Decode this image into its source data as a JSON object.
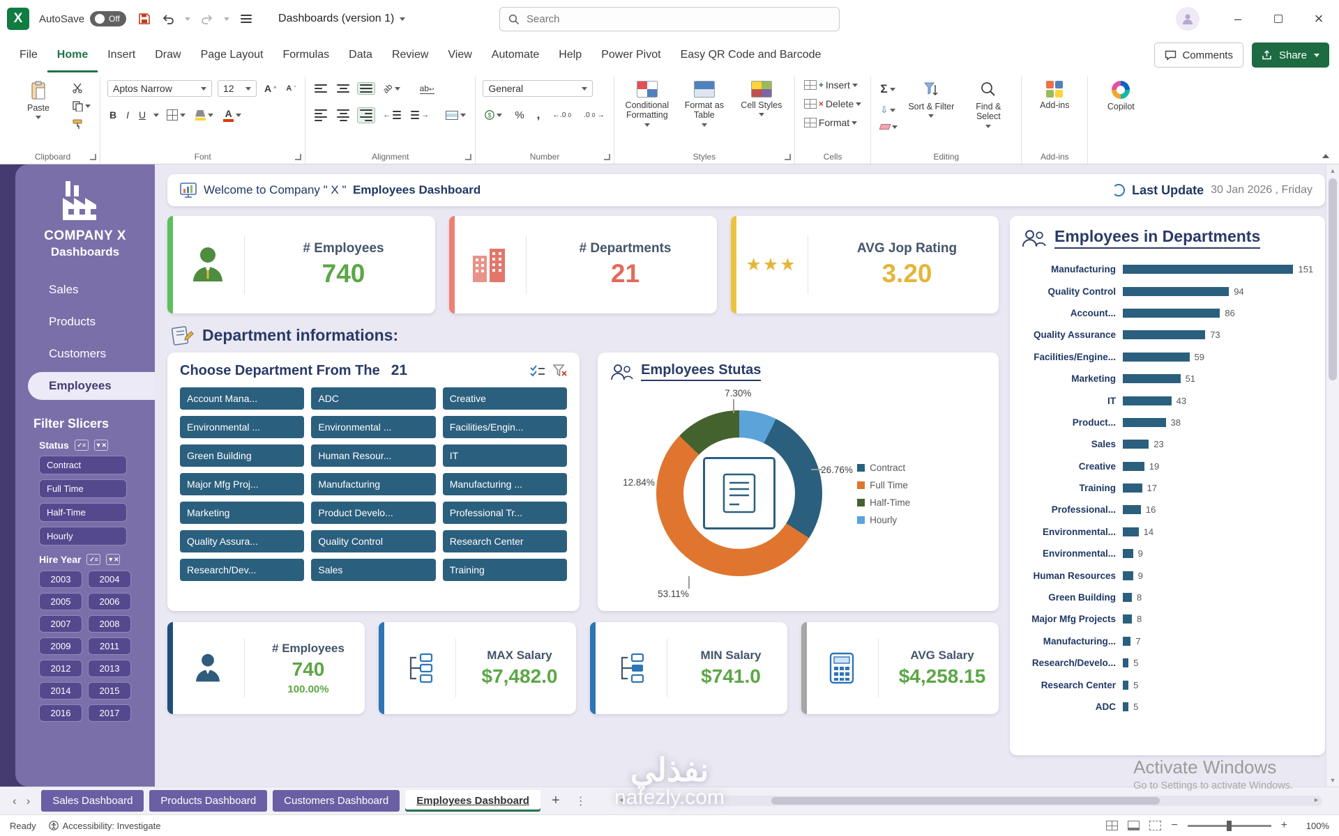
{
  "titlebar": {
    "autosave_label": "AutoSave",
    "autosave_state": "Off",
    "doc_title": "Dashboards (version 1)",
    "search_placeholder": "Search"
  },
  "ribbon_tabs": {
    "items": [
      "File",
      "Home",
      "Insert",
      "Draw",
      "Page Layout",
      "Formulas",
      "Data",
      "Review",
      "View",
      "Automate",
      "Help",
      "Power Pivot",
      "Easy QR Code and Barcode"
    ],
    "active": "Home",
    "comments_label": "Comments",
    "share_label": "Share"
  },
  "ribbon": {
    "paste_label": "Paste",
    "font_name": "Aptos Narrow",
    "font_size": "12",
    "number_format": "General",
    "styles_buttons": [
      "Conditional Formatting",
      "Format as Table",
      "Cell Styles"
    ],
    "cells_buttons": [
      "Insert",
      "Delete",
      "Format"
    ],
    "editing_buttons": [
      "Sort & Filter",
      "Find & Select"
    ],
    "addins_label": "Add-ins",
    "copilot_label": "Copilot",
    "group_labels": {
      "clipboard": "Clipboard",
      "font": "Font",
      "alignment": "Alignment",
      "number": "Number",
      "styles": "Styles",
      "cells": "Cells",
      "editing": "Editing",
      "addins": "Add-ins"
    }
  },
  "sidebar": {
    "company_line1": "COMPANY X",
    "company_line2": "Dashboards",
    "nav": [
      "Sales",
      "Products",
      "Customers",
      "Employees"
    ],
    "active_nav": "Employees",
    "filter_title": "Filter Slicers",
    "status_slicer": {
      "title": "Status",
      "items": [
        "Contract",
        "Full Time",
        "Half-Time",
        "Hourly"
      ]
    },
    "hire_year_slicer": {
      "title": "Hire Year",
      "items": [
        "2003",
        "2004",
        "2005",
        "2006",
        "2007",
        "2008",
        "2009",
        "2011",
        "2012",
        "2013",
        "2014",
        "2015",
        "2016",
        "2017"
      ]
    }
  },
  "header": {
    "welcome_prefix": "Welcome to Company \" X \"",
    "welcome_bold": "Employees Dashboard",
    "last_update_label": "Last Update",
    "last_update_value": "30 Jan 2026 , Friday"
  },
  "kpis_top": [
    {
      "label": "# Employees",
      "value": "740",
      "color": "#5ca647",
      "accent": "#5bc05b"
    },
    {
      "label": "# Departments",
      "value": "21",
      "color": "#e46a5a",
      "accent": "#ef7f72"
    },
    {
      "label": "AVG Jop Rating",
      "value": "3.20",
      "color": "#e5b53a",
      "accent": "#ecc23f"
    }
  ],
  "section_title": "Department  informations:",
  "dept_slicer": {
    "title": "Choose Department From The",
    "count": "21",
    "items": [
      "Account Mana...",
      "ADC",
      "Creative",
      "Environmental ...",
      "Environmental ...",
      "Facilities/Engin...",
      "Green Building",
      "Human Resour...",
      "IT",
      "Major Mfg Proj...",
      "Manufacturing",
      "Manufacturing ...",
      "Marketing",
      "Product Develo...",
      "Professional Tr...",
      "Quality Assura...",
      "Quality Control",
      "Research Center",
      "Research/Dev...",
      "Sales",
      "Training"
    ]
  },
  "status_chart": {
    "type": "pie",
    "title": "Employees Stutas",
    "slices": [
      {
        "label": "Contract",
        "pct": 26.76,
        "color": "#2b5f7e"
      },
      {
        "label": "Full Time",
        "pct": 53.11,
        "color": "#e0752f"
      },
      {
        "label": "Half-Time",
        "pct": 12.84,
        "color": "#44622e"
      },
      {
        "label": "Hourly",
        "pct": 7.3,
        "color": "#5ba3d9"
      }
    ],
    "callouts": [
      "7.30%",
      "26.76%",
      "53.11%",
      "12.84%"
    ]
  },
  "kpis_bottom": [
    {
      "label": "# Employees",
      "value": "740",
      "sub": "100.00%",
      "accent": "#1f4e79"
    },
    {
      "label": "MAX Salary",
      "value": "$7,482.0",
      "sub": "",
      "accent": "#2e75b6"
    },
    {
      "label": "MIN Salary",
      "value": "$741.0",
      "sub": "",
      "accent": "#2e75b6"
    },
    {
      "label": "AVG Salary",
      "value": "$4,258.15",
      "sub": "",
      "accent": "#a6a6a6"
    }
  ],
  "dept_chart": {
    "type": "bar",
    "title": "Employees in Departments",
    "axis_max": 168,
    "rows": [
      {
        "label": "Manufacturing",
        "value": 151
      },
      {
        "label": "Quality Control",
        "value": 94
      },
      {
        "label": "Account...",
        "value": 86
      },
      {
        "label": "Quality Assurance",
        "value": 73
      },
      {
        "label": "Facilities/Engine...",
        "value": 59
      },
      {
        "label": "Marketing",
        "value": 51
      },
      {
        "label": "IT",
        "value": 43
      },
      {
        "label": "Product...",
        "value": 38
      },
      {
        "label": "Sales",
        "value": 23
      },
      {
        "label": "Creative",
        "value": 19
      },
      {
        "label": "Training",
        "value": 17
      },
      {
        "label": "Professional...",
        "value": 16
      },
      {
        "label": "Environmental...",
        "value": 14
      },
      {
        "label": "Environmental...",
        "value": 9
      },
      {
        "label": "Human Resources",
        "value": 9
      },
      {
        "label": "Green Building",
        "value": 8
      },
      {
        "label": "Major Mfg Projects",
        "value": 8
      },
      {
        "label": "Manufacturing...",
        "value": 7
      },
      {
        "label": "Research/Develo...",
        "value": 5
      },
      {
        "label": "Research Center",
        "value": 5
      },
      {
        "label": "ADC",
        "value": 5
      }
    ]
  },
  "sheet_bar": {
    "tabs": [
      "Sales Dashboard",
      "Products Dashboard",
      "Customers Dashboard",
      "Employees Dashboard"
    ],
    "active": "Employees Dashboard"
  },
  "status_bar": {
    "ready": "Ready",
    "accessibility": "Accessibility: Investigate",
    "zoom": "100%"
  },
  "watermarks": {
    "activate_line1": "Activate Windows",
    "activate_line2": "Go to Settings to activate Windows.",
    "site_arabic": "نفذلي",
    "site": "nafezly.com"
  },
  "colors": {
    "excel_green": "#107c41",
    "sidebar_purple": "#7b6fa9",
    "sidebar_dark": "#463b71",
    "slicer_button": "#55498e",
    "teal_button": "#2b5f7e",
    "navy_heading": "#283a67",
    "value_green": "#5ca647",
    "workspace_bg": "#eae8f2"
  }
}
